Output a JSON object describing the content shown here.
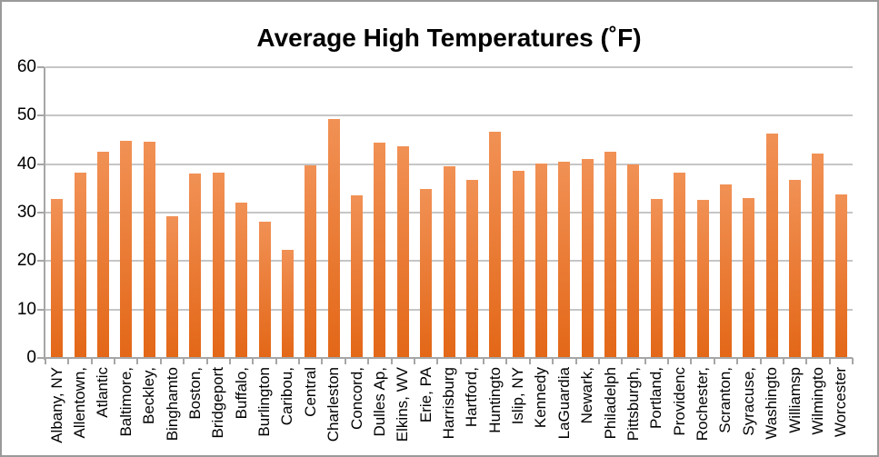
{
  "chart_data": {
    "type": "bar",
    "title": "Average High Temperatures (˚F)",
    "xlabel": "",
    "ylabel": "",
    "ylim": [
      0,
      60
    ],
    "yticks": [
      0,
      10,
      20,
      30,
      40,
      50,
      60
    ],
    "grid": true,
    "legend": false,
    "categories": [
      "Albany, NY",
      "Allentown,",
      "Atlantic",
      "Baltimore,",
      "Beckley,",
      "Binghamto",
      "Boston,",
      "Bridgeport",
      "Buffalo,",
      "Burlington",
      "Caribou,",
      "Central",
      "Charleston",
      "Concord,",
      "Dulles Ap,",
      "Elkins, WV",
      "Erie, PA",
      "Harrisburg",
      "Hartford,",
      "Huntingto",
      "Islip, NY",
      "Kennedy",
      "LaGuardia",
      "Newark,",
      "Philadelph",
      "Pittsburgh,",
      "Portland,",
      "Providenc",
      "Rochester,",
      "Scranton,",
      "Syracuse,",
      "Washingto",
      "Williamsp",
      "Wilmingto",
      "Worcester"
    ],
    "values": [
      32.9,
      38.3,
      42.5,
      44.8,
      44.6,
      29.2,
      38.1,
      38.2,
      32.1,
      28.2,
      22.4,
      39.8,
      49.4,
      33.5,
      44.4,
      43.6,
      34.8,
      39.6,
      36.7,
      46.7,
      38.7,
      40.1,
      40.5,
      41.0,
      42.5,
      40.0,
      32.9,
      38.3,
      32.7,
      35.8,
      33.0,
      46.4,
      36.8,
      42.2,
      33.7
    ]
  },
  "colors": {
    "bar_gradient_top": "#F19155",
    "bar_gradient_bottom": "#E36717",
    "gridline": "#C6C6C6",
    "axis_line": "#A6A6A6",
    "tick": "#A6A6A6",
    "frame_border": "#9A9A9A",
    "text": "#000000",
    "background": "#FFFFFF"
  }
}
